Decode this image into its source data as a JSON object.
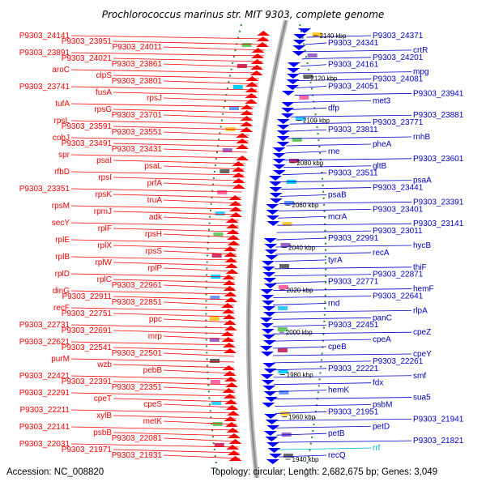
{
  "title": "Prochlorococcus marinus str. MIT 9303, complete genome",
  "footer": {
    "accession": "Accession: NC_008820",
    "summary": "Topology: circular; Length: 2,682,675 bp; Genes: 3,049"
  },
  "colors": {
    "forward": "#ff0000",
    "reverse": "#0000ff",
    "rna": "#00c8e6",
    "backbone": "#999999",
    "gc_ring": "#1e8c1e"
  },
  "ticks": [
    "2140 kbp",
    "2120 kbp",
    "2100 kbp",
    "2080 kbp",
    "2060 kbp",
    "2040 kbp",
    "2020 kbp",
    "2000 kbp",
    "1980 kbp",
    "1960 kbp",
    "1940 kbp"
  ],
  "left_labels": [
    "P9303_24141",
    "P9303_23951",
    "P9303_24011",
    "P9303_23891",
    "P9303_24021",
    "P9303_23861",
    "aroC",
    "clpS",
    "P9303_23801",
    "P9303_23741",
    "fusA",
    "rpsJ",
    "tufA",
    "rpsG",
    "P9303_23701",
    "rpsL",
    "P9303_23591",
    "P9303_23551",
    "cobJ",
    "P9303_23491",
    "P9303_23431",
    "spr",
    "psaI",
    "psaL",
    "rfbD",
    "rpsI",
    "prfA",
    "P9303_23351",
    "rpsK",
    "truA",
    "rpsM",
    "rpmJ",
    "adk",
    "secY",
    "rplF",
    "rpsH",
    "rplE",
    "rplX",
    "rpsS",
    "rplB",
    "rplW",
    "rplP",
    "rplD",
    "rplC",
    "P9303_22961",
    "dinG",
    "P9303_22911",
    "P9303_22851",
    "recF",
    "P9303_22751",
    "ppc",
    "P9303_22731",
    "P9303_22691",
    "mrp",
    "P9303_22621",
    "P9303_22541",
    "P9303_22501",
    "purM",
    "wzb",
    "pebB",
    "P9303_22421",
    "P9303_22391",
    "P9303_22351",
    "P9303_22291",
    "cpeT",
    "cpeS",
    "P9303_22211",
    "xylB",
    "metK",
    "P9303_22141",
    "psbB",
    "P9303_22081",
    "P9303_22031",
    "P9303_21971",
    "P9303_21931"
  ],
  "right_labels": [
    "P9303_24371",
    "P9303_24341",
    "crtR",
    "P9303_24201",
    "P9303_24161",
    "mpg",
    "P9303_24081",
    "P9303_24051",
    "P9303_23941",
    "met3",
    "dfp",
    "P9303_23881",
    "P9303_23771",
    "P9303_23811",
    "rnhB",
    "pheA",
    "rne",
    "P9303_23601",
    "gltB",
    "P9303_23511",
    "psaA",
    "P9303_23441",
    "psaB",
    "P9303_23391",
    "P9303_23401",
    "mcrA",
    "P9303_23141",
    "P9303_23011",
    "P9303_22991",
    "hycB",
    "recA",
    "tyrA",
    "thiF",
    "P9303_22871",
    "P9303_22771",
    "hemF",
    "P9303_22641",
    "rnd",
    "rlpA",
    "panC",
    "P9303_22451",
    "cpeZ",
    "cpeA",
    "cpeB",
    "cpeY",
    "P9303_22261",
    "P9303_22221",
    "smf",
    "fdx",
    "hemK",
    "sua5",
    "psbM",
    "P9303_21951",
    "P9303_21941",
    "petD",
    "petB",
    "P9303_21821",
    "rrf",
    "recQ"
  ],
  "cyan_labels": [
    "rrf"
  ]
}
